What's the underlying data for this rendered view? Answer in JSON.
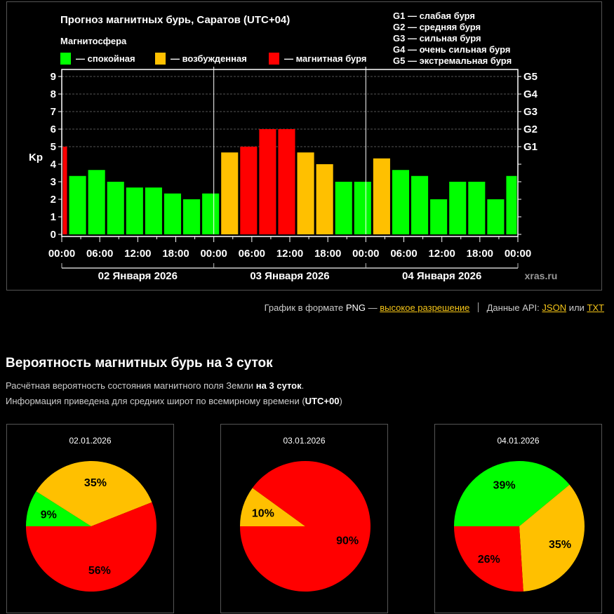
{
  "chart": {
    "title": "Прогноз магнитных бурь, Саратов (UTC+04)",
    "legend_title": "Магнитосфера",
    "legend": [
      {
        "label": "— спокойная",
        "color": "#00ff00"
      },
      {
        "label": "— возбужденная",
        "color": "#ffc000"
      },
      {
        "label": "— магнитная буря",
        "color": "#ff0000"
      }
    ],
    "g_legend": [
      "G1 — слабая буря",
      "G2 — средняя буря",
      "G3 — сильная буря",
      "G4 — очень сильная буря",
      "G5 — экстремальная буря"
    ],
    "watermark": "xras.ru"
  },
  "chart_data": {
    "type": "bar",
    "ylabel": "Kp",
    "ylim": [
      0,
      9
    ],
    "yticks": [
      "0",
      "1",
      "2",
      "3",
      "4",
      "5",
      "6",
      "7",
      "8",
      "9"
    ],
    "right_ticks": [
      "G1",
      "G2",
      "G3",
      "G4",
      "G5"
    ],
    "xticks": [
      "00:00",
      "06:00",
      "12:00",
      "18:00",
      "00:00",
      "06:00",
      "12:00",
      "18:00",
      "00:00",
      "06:00",
      "12:00",
      "18:00",
      "00:00"
    ],
    "days": [
      "02 Января 2026",
      "03 Января 2026",
      "04 Января 2026"
    ],
    "grid": true,
    "bars": [
      {
        "start_h": 0,
        "end_h": 1,
        "kp": 5,
        "level": "storm"
      },
      {
        "start_h": 1,
        "end_h": 4,
        "kp": 3.33,
        "level": "quiet"
      },
      {
        "start_h": 4,
        "end_h": 7,
        "kp": 3.67,
        "level": "quiet"
      },
      {
        "start_h": 7,
        "end_h": 10,
        "kp": 3,
        "level": "quiet"
      },
      {
        "start_h": 10,
        "end_h": 13,
        "kp": 2.67,
        "level": "quiet"
      },
      {
        "start_h": 13,
        "end_h": 16,
        "kp": 2.67,
        "level": "quiet"
      },
      {
        "start_h": 16,
        "end_h": 19,
        "kp": 2.33,
        "level": "quiet"
      },
      {
        "start_h": 19,
        "end_h": 22,
        "kp": 2,
        "level": "quiet"
      },
      {
        "start_h": 22,
        "end_h": 25,
        "kp": 2.33,
        "level": "quiet"
      },
      {
        "start_h": 25,
        "end_h": 28,
        "kp": 4.67,
        "level": "active"
      },
      {
        "start_h": 28,
        "end_h": 31,
        "kp": 5,
        "level": "storm"
      },
      {
        "start_h": 31,
        "end_h": 34,
        "kp": 6,
        "level": "storm"
      },
      {
        "start_h": 34,
        "end_h": 37,
        "kp": 6,
        "level": "storm"
      },
      {
        "start_h": 37,
        "end_h": 40,
        "kp": 4.67,
        "level": "active"
      },
      {
        "start_h": 40,
        "end_h": 43,
        "kp": 4,
        "level": "active"
      },
      {
        "start_h": 43,
        "end_h": 46,
        "kp": 3,
        "level": "quiet"
      },
      {
        "start_h": 46,
        "end_h": 49,
        "kp": 3,
        "level": "quiet"
      },
      {
        "start_h": 49,
        "end_h": 52,
        "kp": 4.33,
        "level": "active"
      },
      {
        "start_h": 52,
        "end_h": 55,
        "kp": 3.67,
        "level": "quiet"
      },
      {
        "start_h": 55,
        "end_h": 58,
        "kp": 3.33,
        "level": "quiet"
      },
      {
        "start_h": 58,
        "end_h": 61,
        "kp": 2,
        "level": "quiet"
      },
      {
        "start_h": 61,
        "end_h": 64,
        "kp": 3,
        "level": "quiet"
      },
      {
        "start_h": 64,
        "end_h": 67,
        "kp": 3,
        "level": "quiet"
      },
      {
        "start_h": 67,
        "end_h": 70,
        "kp": 2,
        "level": "quiet"
      },
      {
        "start_h": 70,
        "end_h": 72,
        "kp": 3.33,
        "level": "quiet"
      }
    ],
    "colors": {
      "quiet": "#00ff00",
      "active": "#ffc000",
      "storm": "#ff0000"
    },
    "pies": [
      {
        "title": "02.01.2026",
        "slices": [
          {
            "level": "quiet",
            "value": 9,
            "label": "9%"
          },
          {
            "level": "active",
            "value": 35,
            "label": "35%"
          },
          {
            "level": "storm",
            "value": 56,
            "label": "56%"
          }
        ]
      },
      {
        "title": "03.01.2026",
        "slices": [
          {
            "level": "quiet",
            "value": 0,
            "label": ""
          },
          {
            "level": "active",
            "value": 10,
            "label": "10%"
          },
          {
            "level": "storm",
            "value": 90,
            "label": "90%"
          }
        ]
      },
      {
        "title": "04.01.2026",
        "slices": [
          {
            "level": "quiet",
            "value": 39,
            "label": "39%"
          },
          {
            "level": "active",
            "value": 35,
            "label": "35%"
          },
          {
            "level": "storm",
            "value": 26,
            "label": "26%"
          }
        ]
      }
    ]
  },
  "links": {
    "png_text": "График в формате",
    "png_word": "PNG",
    "dash": "—",
    "hires": "высокое разрешение",
    "api_text": "Данные API:",
    "json": "JSON",
    "or": "или",
    "txt": "TXT"
  },
  "probability": {
    "heading": "Вероятность магнитных бурь на 3 суток",
    "line1_text": "Расчётная вероятность состояния магнитного поля Земли ",
    "line1_bold": "на 3 суток",
    "line1_end": ".",
    "line2_text": "Информация приведена для средних широт по всемирному времени (",
    "line2_bold": "UTC+00",
    "line2_end": ")"
  }
}
